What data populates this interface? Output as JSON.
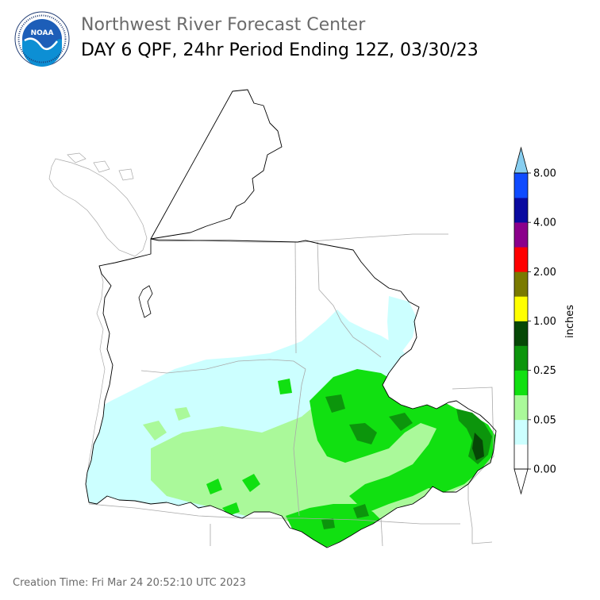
{
  "header": {
    "title_line1": "Northwest River Forecast Center",
    "title_line2": "DAY 6 QPF, 24hr Period Ending 12Z, 03/30/23"
  },
  "logo": {
    "text": "NOAA",
    "ring_text": "NATIONAL OCEANIC AND ATMOSPHERIC ADMINISTRATION",
    "ring_text_bottom": "U.S. DEPARTMENT OF COMMERCE",
    "colors": {
      "sky": "#1d5eb8",
      "ocean": "#0d8fd4",
      "ring": "#ffffff",
      "text": "#1f3b73"
    }
  },
  "colorbar": {
    "unit_label": "inches",
    "tick_labels": [
      "0.00",
      "0.05",
      "0.25",
      "1.00",
      "2.00",
      "4.00",
      "8.00"
    ],
    "bins": [
      {
        "from": 0.0,
        "to": 0.01,
        "color": "#ffffff"
      },
      {
        "from": 0.01,
        "to": 0.05,
        "color": "#ccffff"
      },
      {
        "from": 0.05,
        "to": 0.1,
        "color": "#aaf99a"
      },
      {
        "from": 0.1,
        "to": 0.25,
        "color": "#11e011"
      },
      {
        "from": 0.25,
        "to": 0.5,
        "color": "#0c950c"
      },
      {
        "from": 0.5,
        "to": 1.0,
        "color": "#064806"
      },
      {
        "from": 1.0,
        "to": 1.5,
        "color": "#ffff00"
      },
      {
        "from": 1.5,
        "to": 2.0,
        "color": "#7a7a00"
      },
      {
        "from": 2.0,
        "to": 3.0,
        "color": "#ff0000"
      },
      {
        "from": 3.0,
        "to": 4.0,
        "color": "#8b008b"
      },
      {
        "from": 4.0,
        "to": 6.0,
        "color": "#0a0aa0"
      },
      {
        "from": 6.0,
        "to": 8.0,
        "color": "#0f4bff"
      }
    ],
    "over_color": "#87cef0",
    "under_color": "#ffffff"
  },
  "map": {
    "colors": {
      "basin_outline": "#000000",
      "state_lines": "#a9a9a9",
      "coast": "#a9a9a9"
    }
  },
  "footer": {
    "creation_time": "Creation Time: Fri Mar 24 20:52:10 UTC 2023"
  }
}
